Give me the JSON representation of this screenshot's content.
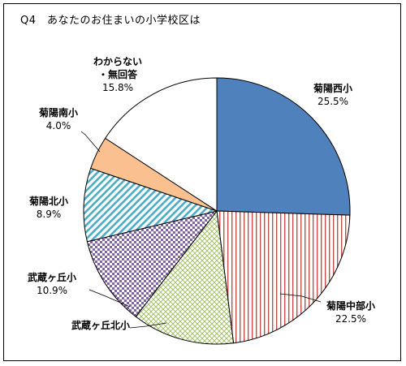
{
  "chart_data": {
    "type": "pie",
    "title": "Q4　あなたのお住まいの小学校区は",
    "slices": [
      {
        "label": "菊陽西小",
        "value": 25.5,
        "value_label": "25.5%",
        "color": "#4f81bd",
        "pattern": "solid"
      },
      {
        "label": "菊陽中部小",
        "value": 22.5,
        "value_label": "22.5%",
        "color": "#c0504d",
        "pattern": "vertical-lines"
      },
      {
        "label": "武蔵ヶ丘北小",
        "value": 12.4,
        "value_label": "",
        "color": "#9bbb59",
        "pattern": "crosshatch"
      },
      {
        "label": "武蔵ヶ丘小",
        "value": 10.9,
        "value_label": "10.9%",
        "color": "#8064a2",
        "pattern": "checker"
      },
      {
        "label": "菊陽北小",
        "value": 8.9,
        "value_label": "8.9%",
        "color": "#4bacc6",
        "pattern": "diagonal"
      },
      {
        "label": "菊陽南小",
        "value": 4.0,
        "value_label": "4.0%",
        "color": "#fac090",
        "pattern": "solid"
      },
      {
        "label": "わからない・無回答",
        "value": 15.8,
        "value_label": "15.8%",
        "color": "#ffffff",
        "pattern": "solid"
      }
    ],
    "start_angle_deg": 0,
    "direction": "clockwise",
    "legend": "none",
    "label_placement": "outside-with-leaders"
  }
}
